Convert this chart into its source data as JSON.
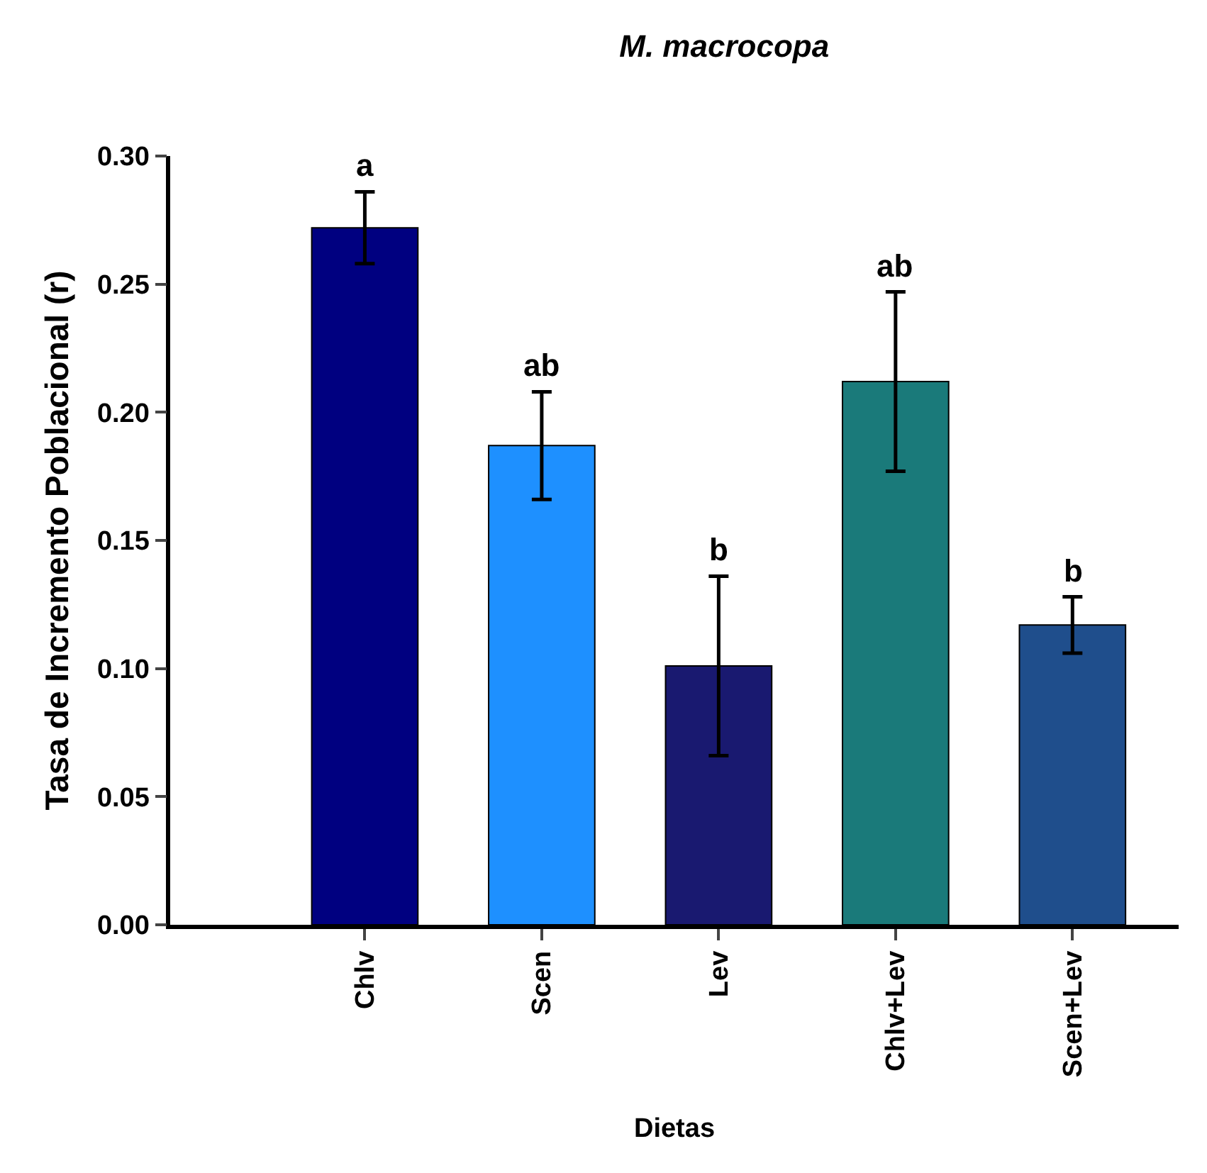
{
  "chart_data": {
    "type": "bar",
    "title": "M. macrocopa",
    "xlabel": "Dietas",
    "ylabel": "Tasa de Incremento Poblacional (r)",
    "categories": [
      "Chlv",
      "Scen",
      "Lev",
      "Chlv+Lev",
      "Scen+Lev"
    ],
    "values": [
      0.272,
      0.187,
      0.101,
      0.212,
      0.117
    ],
    "errors": [
      0.014,
      0.021,
      0.035,
      0.035,
      0.011
    ],
    "colors": [
      "#000080",
      "#1e90ff",
      "#191970",
      "#1a7a7a",
      "#1f4e8c"
    ],
    "annotations": [
      {
        "text": "a",
        "x": "Chlv",
        "y": 0.286
      },
      {
        "text": "ab",
        "x": "Scen",
        "y": 0.208
      },
      {
        "text": "b",
        "x": "Lev",
        "y": 0.136
      },
      {
        "text": "ab",
        "x": "Chlv+Lev",
        "y": 0.247
      },
      {
        "text": "b",
        "x": "Scen+Lev",
        "y": 0.128
      }
    ],
    "ylim": [
      0,
      0.3
    ],
    "yticks": [
      {
        "value": 0,
        "label": "0.00"
      },
      {
        "value": 0.05,
        "label": "0.05"
      },
      {
        "value": 0.1,
        "label": "0.10"
      },
      {
        "value": 0.15,
        "label": "0.15"
      },
      {
        "value": 0.2,
        "label": "0.20"
      },
      {
        "value": 0.25,
        "label": "0.25"
      },
      {
        "value": 0.3,
        "label": "0.30"
      }
    ],
    "grid": false,
    "legend": false
  }
}
